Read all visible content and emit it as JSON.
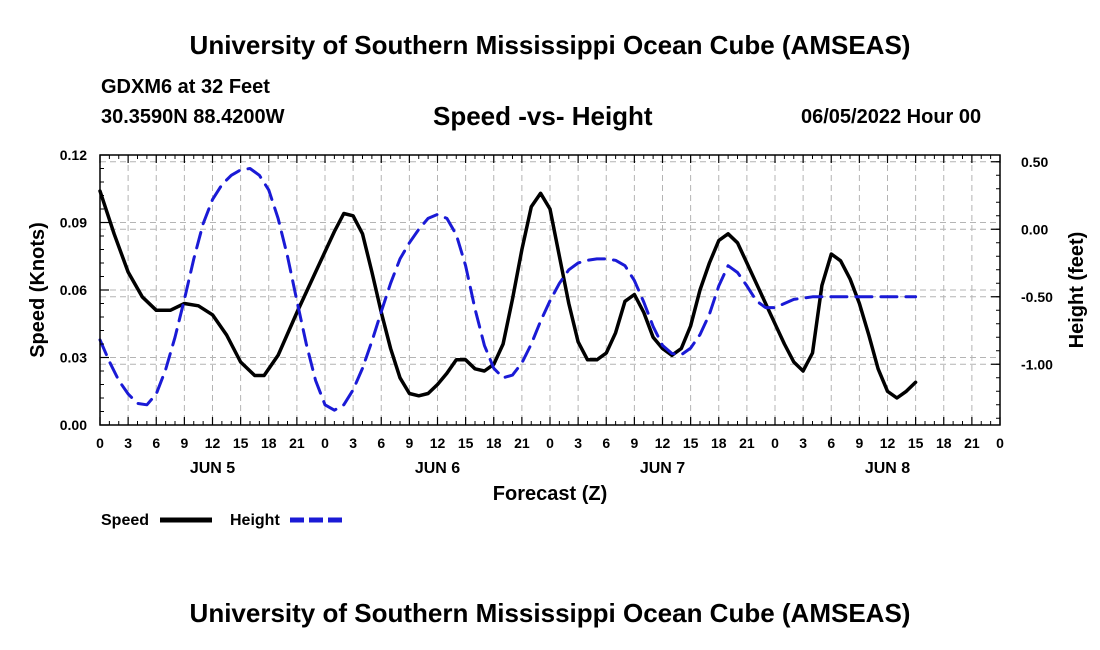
{
  "header": {
    "title": "University of Southern Mississippi Ocean Cube (AMSEAS)",
    "station": "GDXM6 at 32 Feet",
    "coords": "30.3590N  88.4200W",
    "chart_title": "Speed -vs- Height",
    "date": "06/05/2022 Hour 00"
  },
  "footer": {
    "title": "University of Southern Mississippi Ocean Cube (AMSEAS)"
  },
  "colors": {
    "speed": "#000000",
    "height": "#1a1ad6",
    "grid": "#b4b4b4"
  },
  "chart_data": {
    "type": "line",
    "title": "Speed -vs- Height",
    "xlabel": "Forecast (Z)",
    "ylabel": "Speed (Knots)",
    "y2label": "Height (feet)",
    "xlim": [
      0,
      96
    ],
    "ylim": [
      0,
      0.12
    ],
    "y2lim": [
      -1.45,
      0.55
    ],
    "yticks": [
      "0.00",
      "0.03",
      "0.06",
      "0.09",
      "0.12"
    ],
    "y2ticks": [
      "0.50",
      "0.00",
      "-0.50",
      "-1.00"
    ],
    "y2tick_values": [
      0.5,
      0.0,
      -0.5,
      -1.0
    ],
    "xtick_labels": [
      "0",
      "3",
      "6",
      "9",
      "12",
      "15",
      "18",
      "21",
      "0",
      "3",
      "6",
      "9",
      "12",
      "15",
      "18",
      "21",
      "0",
      "3",
      "6",
      "9",
      "12",
      "15",
      "18",
      "21",
      "0",
      "3",
      "6",
      "9",
      "12",
      "15",
      "18",
      "21",
      "0"
    ],
    "day_labels": [
      {
        "label": "JUN 5",
        "hour": 12
      },
      {
        "label": "JUN 6",
        "hour": 36
      },
      {
        "label": "JUN 7",
        "hour": 60
      },
      {
        "label": "JUN 8",
        "hour": 84
      }
    ],
    "legend": [
      {
        "name": "Speed",
        "style": "solid"
      },
      {
        "name": "Height",
        "style": "dashed"
      }
    ],
    "series": [
      {
        "name": "Speed",
        "axis": "left",
        "points": [
          [
            0,
            0.104
          ],
          [
            1.5,
            0.085
          ],
          [
            3,
            0.068
          ],
          [
            4.5,
            0.057
          ],
          [
            6,
            0.051
          ],
          [
            7.5,
            0.051
          ],
          [
            9,
            0.054
          ],
          [
            10.5,
            0.053
          ],
          [
            12,
            0.049
          ],
          [
            13.5,
            0.04
          ],
          [
            15,
            0.028
          ],
          [
            16.5,
            0.022
          ],
          [
            17.5,
            0.022
          ],
          [
            19,
            0.031
          ],
          [
            21,
            0.05
          ],
          [
            23,
            0.068
          ],
          [
            25,
            0.086
          ],
          [
            26,
            0.094
          ],
          [
            27,
            0.093
          ],
          [
            28,
            0.085
          ],
          [
            29,
            0.068
          ],
          [
            30,
            0.05
          ],
          [
            31,
            0.034
          ],
          [
            32,
            0.021
          ],
          [
            33,
            0.014
          ],
          [
            34,
            0.013
          ],
          [
            35,
            0.014
          ],
          [
            36,
            0.018
          ],
          [
            37,
            0.023
          ],
          [
            38,
            0.029
          ],
          [
            39,
            0.029
          ],
          [
            40,
            0.025
          ],
          [
            41,
            0.024
          ],
          [
            42,
            0.027
          ],
          [
            43,
            0.036
          ],
          [
            44,
            0.056
          ],
          [
            45,
            0.078
          ],
          [
            46,
            0.097
          ],
          [
            47,
            0.103
          ],
          [
            48,
            0.096
          ],
          [
            49,
            0.075
          ],
          [
            50,
            0.054
          ],
          [
            51,
            0.037
          ],
          [
            52,
            0.029
          ],
          [
            53,
            0.029
          ],
          [
            54,
            0.032
          ],
          [
            55,
            0.041
          ],
          [
            56,
            0.055
          ],
          [
            57,
            0.058
          ],
          [
            58,
            0.05
          ],
          [
            59,
            0.039
          ],
          [
            60,
            0.034
          ],
          [
            61,
            0.031
          ],
          [
            62,
            0.034
          ],
          [
            63,
            0.044
          ],
          [
            64,
            0.06
          ],
          [
            65,
            0.072
          ],
          [
            66,
            0.082
          ],
          [
            67,
            0.085
          ],
          [
            68,
            0.081
          ],
          [
            69,
            0.072
          ],
          [
            70,
            0.063
          ],
          [
            71,
            0.054
          ],
          [
            72,
            0.045
          ],
          [
            73,
            0.036
          ],
          [
            74,
            0.028
          ],
          [
            75,
            0.024
          ],
          [
            76,
            0.032
          ],
          [
            77,
            0.062
          ],
          [
            78,
            0.076
          ],
          [
            79,
            0.073
          ],
          [
            80,
            0.065
          ],
          [
            81,
            0.054
          ],
          [
            82,
            0.04
          ],
          [
            83,
            0.025
          ],
          [
            84,
            0.015
          ],
          [
            85,
            0.012
          ],
          [
            86,
            0.015
          ],
          [
            87,
            0.019
          ]
        ]
      },
      {
        "name": "Height",
        "axis": "right",
        "points": [
          [
            0,
            -0.82
          ],
          [
            1,
            -0.98
          ],
          [
            2,
            -1.12
          ],
          [
            3,
            -1.22
          ],
          [
            4,
            -1.29
          ],
          [
            5,
            -1.3
          ],
          [
            6,
            -1.22
          ],
          [
            7,
            -1.04
          ],
          [
            8,
            -0.8
          ],
          [
            9,
            -0.52
          ],
          [
            10,
            -0.22
          ],
          [
            11,
            0.04
          ],
          [
            12,
            0.22
          ],
          [
            13,
            0.33
          ],
          [
            14,
            0.4
          ],
          [
            15,
            0.44
          ],
          [
            16,
            0.45
          ],
          [
            17,
            0.4
          ],
          [
            18,
            0.29
          ],
          [
            19,
            0.08
          ],
          [
            20,
            -0.2
          ],
          [
            21,
            -0.53
          ],
          [
            22,
            -0.85
          ],
          [
            23,
            -1.12
          ],
          [
            24,
            -1.3
          ],
          [
            25,
            -1.34
          ],
          [
            26,
            -1.3
          ],
          [
            27,
            -1.19
          ],
          [
            28,
            -1.03
          ],
          [
            29,
            -0.83
          ],
          [
            30,
            -0.61
          ],
          [
            31,
            -0.4
          ],
          [
            32,
            -0.22
          ],
          [
            33,
            -0.1
          ],
          [
            34,
            0.0
          ],
          [
            35,
            0.08
          ],
          [
            36,
            0.11
          ],
          [
            37,
            0.08
          ],
          [
            38,
            -0.04
          ],
          [
            39,
            -0.27
          ],
          [
            40,
            -0.59
          ],
          [
            41,
            -0.86
          ],
          [
            42,
            -1.03
          ],
          [
            43,
            -1.1
          ],
          [
            44,
            -1.08
          ],
          [
            45,
            -0.99
          ],
          [
            46,
            -0.85
          ],
          [
            47,
            -0.68
          ],
          [
            48,
            -0.53
          ],
          [
            49,
            -0.4
          ],
          [
            50,
            -0.3
          ],
          [
            51,
            -0.25
          ],
          [
            52,
            -0.23
          ],
          [
            53,
            -0.22
          ],
          [
            54,
            -0.22
          ],
          [
            55,
            -0.23
          ],
          [
            56,
            -0.27
          ],
          [
            57,
            -0.38
          ],
          [
            58,
            -0.54
          ],
          [
            59,
            -0.72
          ],
          [
            60,
            -0.86
          ],
          [
            61,
            -0.92
          ],
          [
            62,
            -0.93
          ],
          [
            63,
            -0.88
          ],
          [
            64,
            -0.78
          ],
          [
            65,
            -0.63
          ],
          [
            66,
            -0.42
          ],
          [
            67,
            -0.27
          ],
          [
            68,
            -0.32
          ],
          [
            69,
            -0.42
          ],
          [
            70,
            -0.53
          ],
          [
            71,
            -0.58
          ],
          [
            72,
            -0.58
          ],
          [
            73,
            -0.55
          ],
          [
            74,
            -0.52
          ],
          [
            75,
            -0.51
          ],
          [
            76,
            -0.5
          ],
          [
            77,
            -0.5
          ],
          [
            78,
            -0.5
          ],
          [
            79,
            -0.5
          ],
          [
            80,
            -0.5
          ],
          [
            81,
            -0.5
          ],
          [
            82,
            -0.5
          ],
          [
            83,
            -0.5
          ],
          [
            84,
            -0.5
          ],
          [
            85,
            -0.5
          ],
          [
            86,
            -0.5
          ],
          [
            87,
            -0.5
          ]
        ]
      }
    ]
  }
}
